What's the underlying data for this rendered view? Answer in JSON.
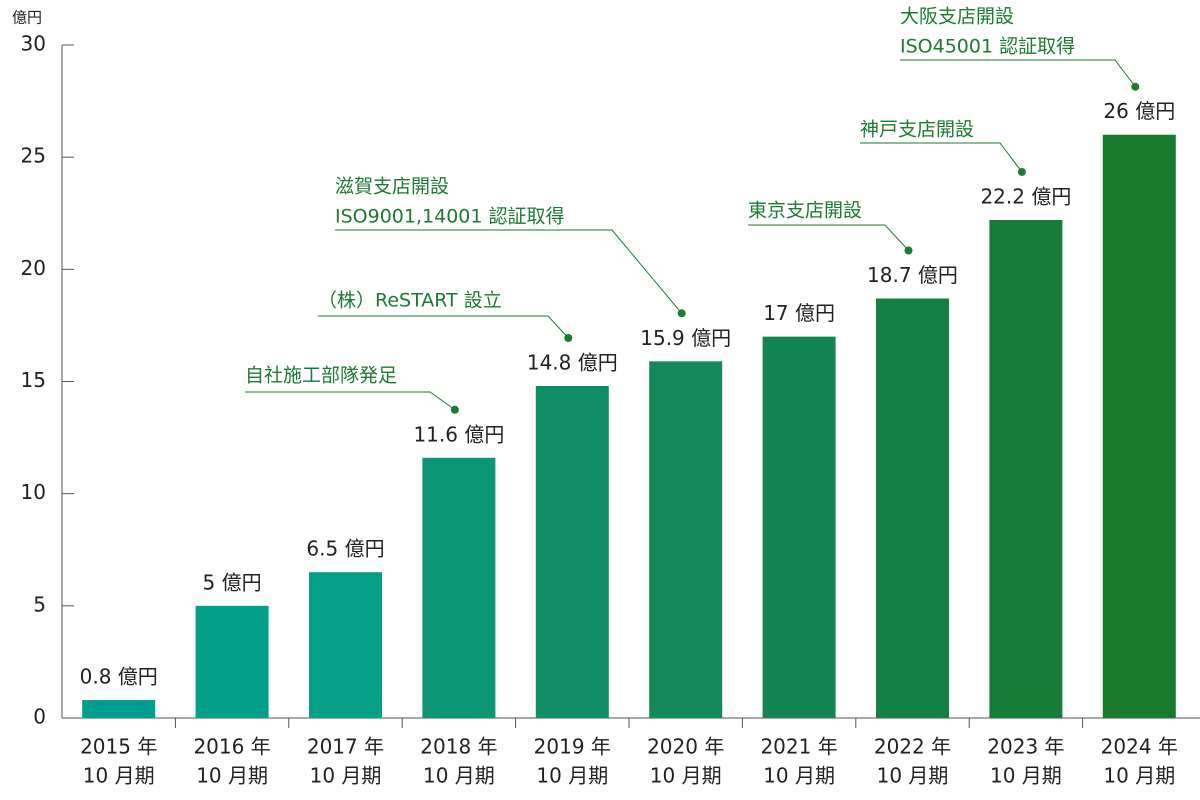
{
  "chart_data": {
    "type": "bar",
    "y_label": "億円",
    "categories": [
      [
        "2015 年",
        "10 月期"
      ],
      [
        "2016 年",
        "10 月期"
      ],
      [
        "2017 年",
        "10 月期"
      ],
      [
        "2018 年",
        "10 月期"
      ],
      [
        "2019 年",
        "10 月期"
      ],
      [
        "2020 年",
        "10 月期"
      ],
      [
        "2021 年",
        "10 月期"
      ],
      [
        "2022 年",
        "10 月期"
      ],
      [
        "2023 年",
        "10 月期"
      ],
      [
        "2024 年",
        "10 月期"
      ]
    ],
    "values": [
      0.8,
      5,
      6.5,
      11.6,
      14.8,
      15.9,
      17,
      18.7,
      22.2,
      26
    ],
    "value_labels": [
      "0.8 億円",
      "5 億円",
      "6.5 億円",
      "11.6 億円",
      "14.8 億円",
      "15.9 億円",
      "17 億円",
      "18.7 億円",
      "22.2 億円",
      "26 億円"
    ],
    "colors": [
      "#009e8f",
      "#02a08b",
      "#04a088",
      "#0b9775",
      "#108f66",
      "#13895c",
      "#148552",
      "#158044",
      "#177c37",
      "#197a2d"
    ],
    "ylim": [
      0,
      30
    ],
    "yticks": [
      0,
      5,
      10,
      15,
      20,
      25,
      30
    ],
    "annotations": [
      [
        "自社施工部隊発足"
      ],
      [
        "（株）ReSTART 設立"
      ],
      [
        "滋賀支店開設",
        "ISO9001,14001 認証取得"
      ],
      [
        "東京支店開設"
      ],
      [
        "神戸支店開設"
      ],
      [
        "大阪支店開設",
        "ISO45001 認証取得"
      ]
    ]
  }
}
